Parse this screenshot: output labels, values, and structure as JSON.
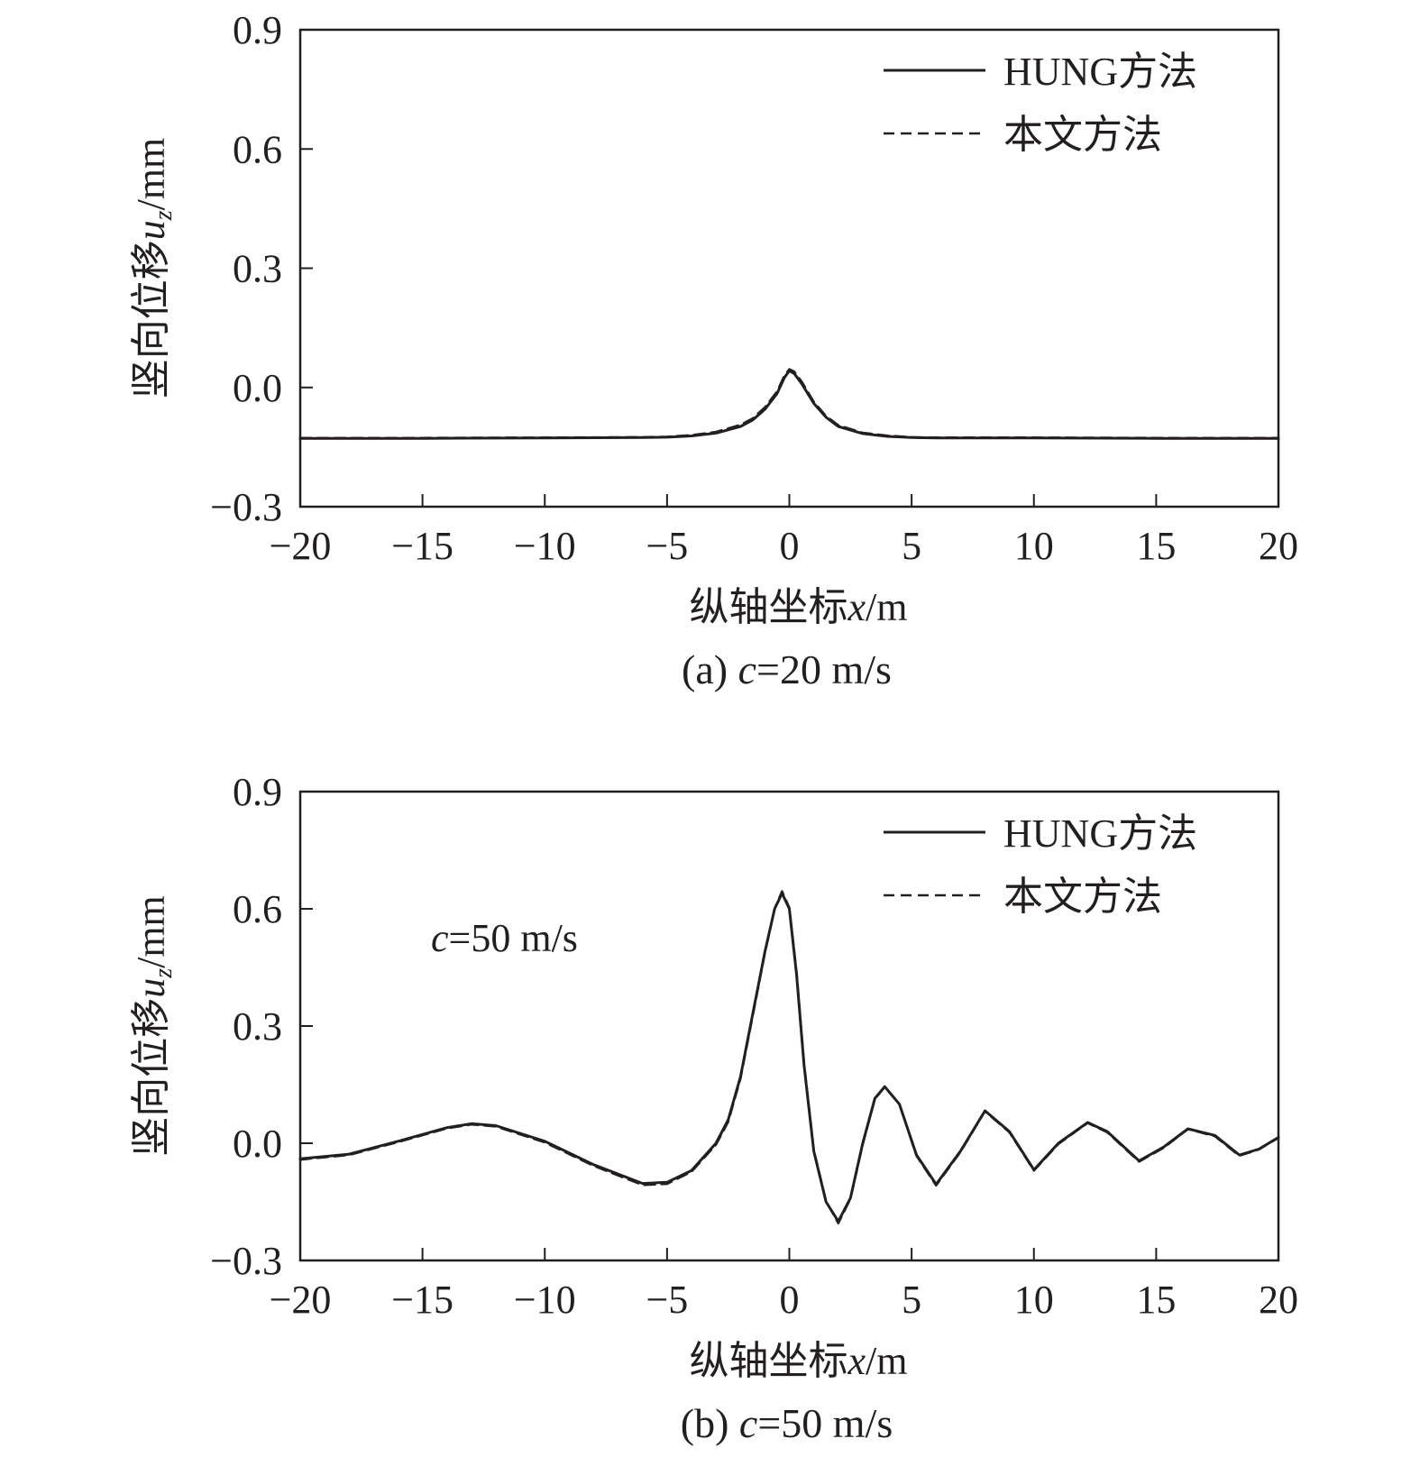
{
  "chart_data": [
    {
      "type": "line",
      "panel": "a",
      "caption": {
        "prefix": "(a) ",
        "var": "c",
        "suffix": "=20 m/s"
      },
      "xlabel": {
        "prefix": "纵轴坐标",
        "var": "x",
        "suffix": "/m"
      },
      "ylabel": {
        "prefix": "竖向位移",
        "var": "u",
        "sub": "z",
        "suffix": "/mm"
      },
      "xlim": [
        -20,
        20
      ],
      "ylim": [
        -0.3,
        0.9
      ],
      "xticks": [
        -20,
        -15,
        -10,
        -5,
        0,
        5,
        10,
        15,
        20
      ],
      "xtick_labels": [
        "−20",
        "−15",
        "−10",
        "−5",
        "0",
        "5",
        "10",
        "15",
        "20"
      ],
      "yticks": [
        -0.3,
        0.0,
        0.3,
        0.6,
        0.9
      ],
      "ytick_labels": [
        "−0.3",
        "0.0",
        "0.3",
        "0.6",
        "0.9"
      ],
      "grid": false,
      "legend_position": "top-right",
      "annotation": null,
      "series": [
        {
          "name": "HUNG方法",
          "style": "solid",
          "x": [
            -20,
            -15,
            -10,
            -6,
            -5,
            -4,
            -3,
            -2,
            -1.5,
            -1,
            -0.5,
            -0.2,
            0,
            0.2,
            0.5,
            1,
            1.5,
            2,
            3,
            4,
            5,
            6,
            10,
            15,
            20
          ],
          "y": [
            -0.128,
            -0.128,
            -0.127,
            -0.126,
            -0.125,
            -0.122,
            -0.115,
            -0.098,
            -0.082,
            -0.055,
            -0.015,
            0.025,
            0.042,
            0.035,
            0.01,
            -0.04,
            -0.075,
            -0.098,
            -0.116,
            -0.123,
            -0.126,
            -0.127,
            -0.127,
            -0.128,
            -0.128
          ]
        },
        {
          "name": "本文方法",
          "style": "dashed",
          "x": [
            -20,
            -15,
            -10,
            -6,
            -5,
            -4,
            -3,
            -2,
            -1.5,
            -1,
            -0.5,
            -0.2,
            0,
            0.2,
            0.5,
            1,
            1.5,
            2,
            3,
            4,
            5,
            6,
            10,
            15,
            20
          ],
          "y": [
            -0.127,
            -0.127,
            -0.126,
            -0.125,
            -0.124,
            -0.12,
            -0.112,
            -0.094,
            -0.078,
            -0.05,
            -0.01,
            0.03,
            0.046,
            0.04,
            0.015,
            -0.036,
            -0.072,
            -0.095,
            -0.114,
            -0.121,
            -0.125,
            -0.126,
            -0.126,
            -0.127,
            -0.127
          ]
        }
      ]
    },
    {
      "type": "line",
      "panel": "b",
      "caption": {
        "prefix": "(b) ",
        "var": "c",
        "suffix": "=50 m/s"
      },
      "xlabel": {
        "prefix": "纵轴坐标",
        "var": "x",
        "suffix": "/m"
      },
      "ylabel": {
        "prefix": "竖向位移",
        "var": "u",
        "sub": "z",
        "suffix": "/mm"
      },
      "xlim": [
        -20,
        20
      ],
      "ylim": [
        -0.3,
        0.9
      ],
      "xticks": [
        -20,
        -15,
        -10,
        -5,
        0,
        5,
        10,
        15,
        20
      ],
      "xtick_labels": [
        "−20",
        "−15",
        "−10",
        "−5",
        "0",
        "5",
        "10",
        "15",
        "20"
      ],
      "yticks": [
        -0.3,
        0.0,
        0.3,
        0.6,
        0.9
      ],
      "ytick_labels": [
        "−0.3",
        "0.0",
        "0.3",
        "0.6",
        "0.9"
      ],
      "grid": false,
      "legend_position": "top-right",
      "annotation": {
        "var": "c",
        "suffix": "=50 m/s"
      },
      "series": [
        {
          "name": "HUNG方法",
          "style": "solid",
          "x": [
            -20,
            -18,
            -16,
            -14,
            -13,
            -12,
            -10,
            -8,
            -6,
            -5,
            -4,
            -3,
            -2.5,
            -2,
            -1.5,
            -1,
            -0.6,
            -0.3,
            0,
            0.3,
            0.6,
            1,
            1.5,
            2,
            2.5,
            3,
            3.5,
            3.9,
            4.5,
            5.2,
            6,
            7,
            8,
            9,
            10,
            11,
            12.2,
            13,
            14.3,
            15.3,
            16.3,
            17.4,
            18.4,
            19.2,
            20
          ],
          "y": [
            -0.04,
            -0.028,
            0.005,
            0.04,
            0.05,
            0.045,
            0.005,
            -0.055,
            -0.103,
            -0.1,
            -0.07,
            0.0,
            0.06,
            0.17,
            0.33,
            0.49,
            0.6,
            0.64,
            0.6,
            0.43,
            0.2,
            -0.02,
            -0.15,
            -0.2,
            -0.14,
            0.0,
            0.115,
            0.145,
            0.1,
            -0.03,
            -0.105,
            -0.02,
            0.083,
            0.03,
            -0.068,
            0.0,
            0.053,
            0.03,
            -0.045,
            -0.01,
            0.037,
            0.02,
            -0.03,
            -0.015,
            0.015
          ]
        },
        {
          "name": "本文方法",
          "style": "dashed",
          "x": [
            -20,
            -18,
            -16,
            -14,
            -13,
            -12,
            -10,
            -8,
            -6,
            -5,
            -4,
            -3,
            -2.5,
            -2,
            -1.5,
            -1,
            -0.6,
            -0.3,
            0,
            0.3,
            0.6,
            1,
            1.5,
            2,
            2.5,
            3,
            3.5,
            3.9,
            4.5,
            5.2,
            6,
            7,
            8,
            9,
            10,
            11,
            12.2,
            13,
            14.3,
            15.3,
            16.3,
            17.4,
            18.4,
            19.2,
            20
          ],
          "y": [
            -0.042,
            -0.03,
            0.003,
            0.038,
            0.048,
            0.043,
            0.002,
            -0.058,
            -0.107,
            -0.104,
            -0.073,
            -0.004,
            0.055,
            0.165,
            0.325,
            0.487,
            0.6,
            0.645,
            0.603,
            0.435,
            0.205,
            -0.017,
            -0.148,
            -0.205,
            -0.142,
            -0.003,
            0.113,
            0.144,
            0.1,
            -0.032,
            -0.108,
            -0.022,
            0.082,
            0.028,
            -0.07,
            -0.002,
            0.052,
            0.028,
            -0.047,
            -0.012,
            0.036,
            0.018,
            -0.032,
            -0.016,
            0.014
          ]
        }
      ]
    }
  ]
}
